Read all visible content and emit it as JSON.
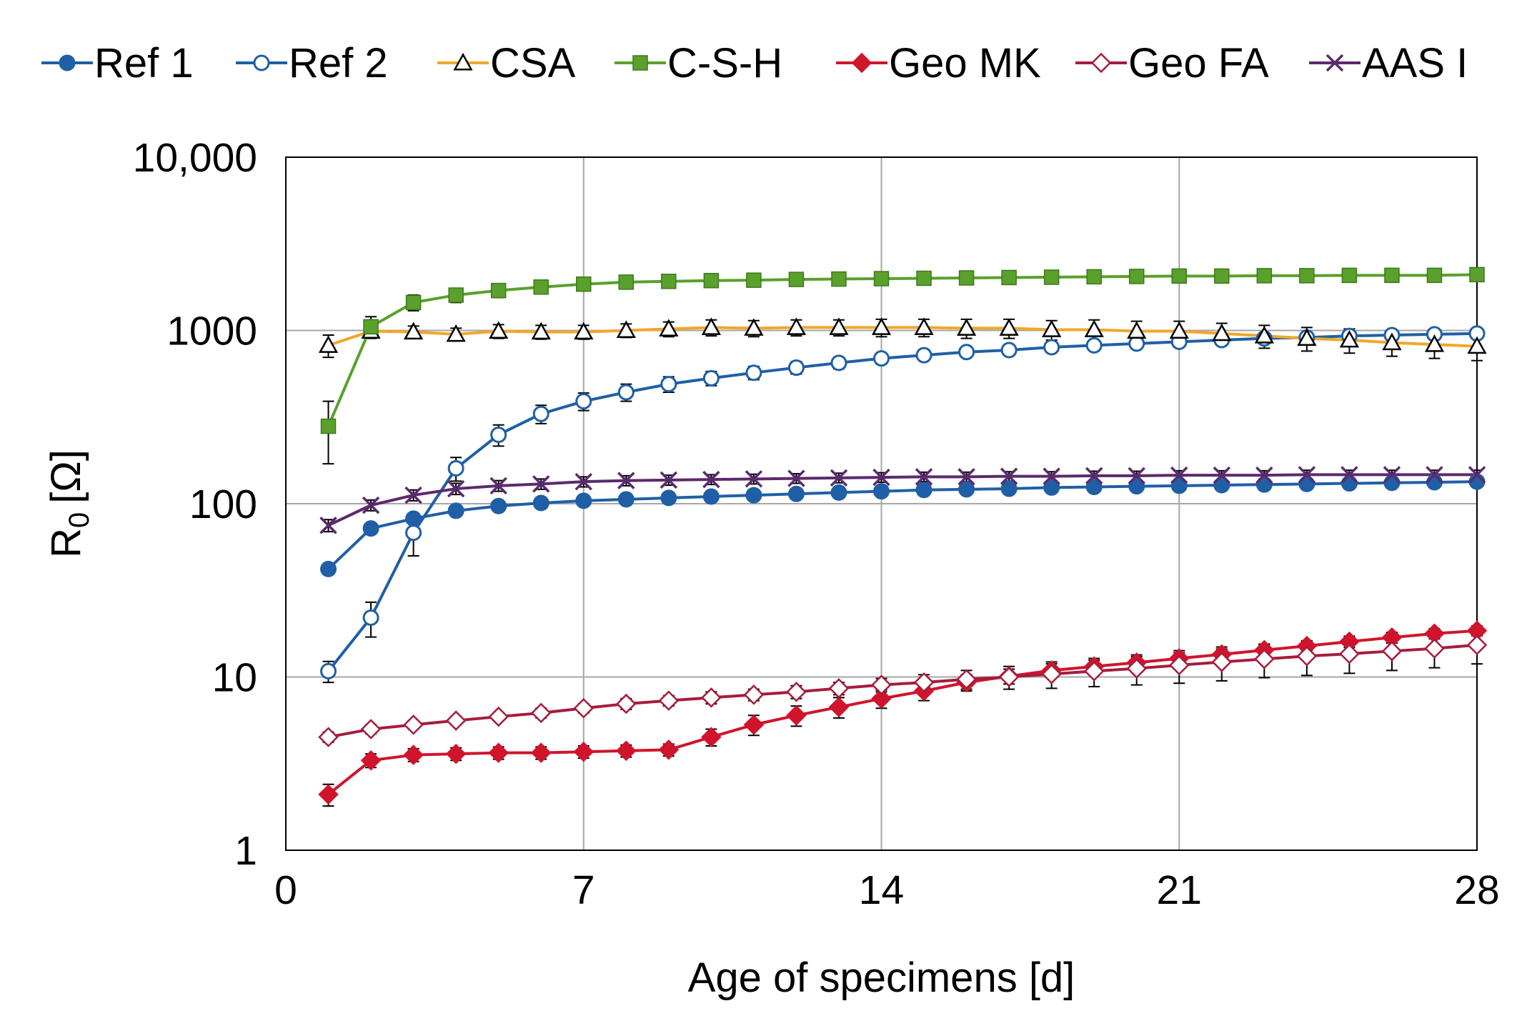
{
  "chart_data": {
    "type": "line",
    "title": "",
    "xlabel": "Age of specimens [d]",
    "ylabel": "R",
    "ylabel_sub": "0",
    "ylabel_unit": "[Ω]",
    "yscale": "log",
    "xlim": [
      0,
      28
    ],
    "ylim": [
      1,
      10000
    ],
    "xticks": [
      0,
      7,
      14,
      21,
      28
    ],
    "xtick_labels": [
      "0",
      "7",
      "14",
      "21",
      "28"
    ],
    "yticks": [
      1,
      10,
      100,
      1000,
      10000
    ],
    "ytick_labels": [
      "1",
      "10",
      "100",
      "1000",
      "10,000"
    ],
    "grid": true,
    "legend_position": "top",
    "x": [
      1,
      2,
      3,
      4,
      5,
      6,
      7,
      8,
      9,
      10,
      11,
      12,
      13,
      14,
      15,
      16,
      17,
      18,
      19,
      20,
      21,
      22,
      23,
      24,
      25,
      26,
      27,
      28
    ],
    "series": [
      {
        "name": "Ref 1",
        "color": "#1f5fa6",
        "marker": "circle-filled",
        "values": [
          42,
          72,
          82,
          91,
          97,
          101,
          104,
          106,
          108,
          110,
          112,
          114,
          116,
          118,
          120,
          121,
          122,
          124,
          125,
          126,
          127,
          128,
          129,
          130,
          131,
          132,
          133,
          134
        ],
        "errors": [
          3,
          4,
          4,
          4,
          4,
          4,
          4,
          4,
          4,
          4,
          4,
          4,
          4,
          4,
          4,
          4,
          4,
          4,
          4,
          4,
          4,
          4,
          4,
          4,
          4,
          4,
          4,
          4
        ]
      },
      {
        "name": "Ref 2",
        "color": "#1f5fa6",
        "marker": "circle-open",
        "values": [
          10.8,
          22,
          68,
          160,
          250,
          330,
          390,
          440,
          490,
          530,
          570,
          610,
          650,
          690,
          720,
          750,
          770,
          800,
          820,
          840,
          860,
          880,
          900,
          910,
          930,
          940,
          950,
          960
        ],
        "errors": [
          1.5,
          5,
          18,
          25,
          35,
          40,
          45,
          50,
          50,
          50,
          50,
          50,
          50,
          50,
          50,
          50,
          50,
          50,
          50,
          50,
          50,
          50,
          50,
          50,
          50,
          50,
          50,
          50
        ]
      },
      {
        "name": "CSA",
        "color": "#f0a72a",
        "marker": "triangle-open",
        "values": [
          820,
          990,
          980,
          950,
          990,
          980,
          980,
          1000,
          1020,
          1040,
          1030,
          1040,
          1040,
          1040,
          1040,
          1030,
          1030,
          1010,
          1010,
          990,
          990,
          960,
          930,
          900,
          880,
          850,
          830,
          810
        ],
        "errors": [
          120,
          80,
          80,
          80,
          90,
          90,
          90,
          90,
          100,
          110,
          110,
          110,
          110,
          120,
          120,
          130,
          130,
          130,
          140,
          140,
          140,
          140,
          140,
          140,
          140,
          140,
          140,
          140
        ]
      },
      {
        "name": "C-S-H",
        "color": "#5aa02c",
        "marker": "square-filled",
        "values": [
          280,
          1050,
          1450,
          1600,
          1700,
          1780,
          1850,
          1900,
          1920,
          1940,
          1950,
          1970,
          1980,
          1990,
          2000,
          2010,
          2020,
          2030,
          2040,
          2050,
          2060,
          2060,
          2070,
          2070,
          2080,
          2080,
          2080,
          2100
        ],
        "errors": [
          110,
          150,
          150,
          150,
          150,
          150,
          150,
          150,
          150,
          150,
          150,
          150,
          150,
          150,
          150,
          150,
          150,
          150,
          150,
          150,
          150,
          150,
          150,
          150,
          150,
          150,
          150,
          150
        ]
      },
      {
        "name": "Geo MK",
        "color": "#d0142c",
        "marker": "diamond-filled",
        "values": [
          2.1,
          3.3,
          3.55,
          3.6,
          3.65,
          3.65,
          3.7,
          3.75,
          3.8,
          4.5,
          5.3,
          6.0,
          6.7,
          7.5,
          8.3,
          9.3,
          10.1,
          10.9,
          11.5,
          12.1,
          12.8,
          13.5,
          14.3,
          15.1,
          16.0,
          16.9,
          17.8,
          18.5
        ],
        "errors": [
          0.3,
          0.3,
          0.3,
          0.3,
          0.3,
          0.3,
          0.3,
          0.3,
          0.3,
          0.5,
          0.7,
          0.8,
          0.9,
          0.9,
          1.0,
          1.0,
          1.0,
          1.0,
          1.0,
          1.0,
          1.0,
          1.0,
          1.0,
          1.0,
          1.2,
          1.2,
          1.2,
          1.2
        ]
      },
      {
        "name": "Geo FA",
        "color": "#a61c3c",
        "marker": "diamond-open",
        "values": [
          4.5,
          5.0,
          5.3,
          5.6,
          5.9,
          6.2,
          6.6,
          7.0,
          7.3,
          7.6,
          7.9,
          8.2,
          8.6,
          9.0,
          9.3,
          9.7,
          10.0,
          10.4,
          10.8,
          11.2,
          11.7,
          12.2,
          12.7,
          13.2,
          13.6,
          14.1,
          14.6,
          15.3
        ],
        "errors": [
          0.3,
          0.3,
          0.3,
          0.3,
          0.3,
          0.4,
          0.4,
          0.5,
          0.5,
          0.6,
          0.6,
          0.7,
          0.7,
          0.8,
          1.0,
          1.2,
          1.5,
          1.8,
          2.0,
          2.2,
          2.5,
          2.7,
          2.8,
          3.0,
          3.1,
          3.2,
          3.3,
          3.4
        ]
      },
      {
        "name": "AAS I",
        "color": "#5b2a6e",
        "marker": "x",
        "values": [
          75,
          98,
          112,
          122,
          127,
          130,
          134,
          136,
          137,
          138,
          139,
          140,
          141,
          142,
          143,
          143,
          144,
          144,
          145,
          145,
          146,
          146,
          146,
          147,
          147,
          147,
          147,
          147
        ],
        "errors": [
          6,
          7,
          8,
          9,
          9,
          9,
          9,
          9,
          9,
          9,
          9,
          9,
          9,
          9,
          9,
          9,
          9,
          9,
          9,
          9,
          9,
          9,
          9,
          9,
          9,
          9,
          9,
          9
        ]
      }
    ]
  }
}
